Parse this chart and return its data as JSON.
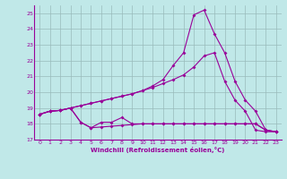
{
  "xlabel": "Windchill (Refroidissement éolien,°C)",
  "bg_color": "#c0e8e8",
  "line_color": "#990099",
  "grid_color": "#99bbbb",
  "xlim": [
    -0.5,
    23.5
  ],
  "ylim": [
    17,
    25.5
  ],
  "xticks": [
    0,
    1,
    2,
    3,
    4,
    5,
    6,
    7,
    8,
    9,
    10,
    11,
    12,
    13,
    14,
    15,
    16,
    17,
    18,
    19,
    20,
    21,
    22,
    23
  ],
  "yticks": [
    17,
    18,
    19,
    20,
    21,
    22,
    23,
    24,
    25
  ],
  "line1_x": [
    0,
    1,
    2,
    3,
    4,
    5,
    6,
    7,
    8,
    9,
    10,
    11,
    12,
    13,
    14,
    15,
    16,
    17,
    18,
    19,
    20,
    21,
    22,
    23
  ],
  "line1_y": [
    18.6,
    18.8,
    18.85,
    19.0,
    19.15,
    19.3,
    19.45,
    19.6,
    19.75,
    19.9,
    20.1,
    20.3,
    20.55,
    20.8,
    21.1,
    21.6,
    22.3,
    22.5,
    20.7,
    19.5,
    18.8,
    17.6,
    17.5,
    17.5
  ],
  "line2_x": [
    0,
    1,
    2,
    3,
    4,
    5,
    6,
    7,
    8,
    9,
    10,
    11,
    12,
    13,
    14,
    15,
    16,
    17,
    18,
    19,
    20,
    21,
    22,
    23
  ],
  "line2_y": [
    18.6,
    18.8,
    18.85,
    19.0,
    19.15,
    19.3,
    19.45,
    19.6,
    19.75,
    19.9,
    20.1,
    20.4,
    20.8,
    21.7,
    22.5,
    24.9,
    25.2,
    23.7,
    22.5,
    20.7,
    19.5,
    18.8,
    17.6,
    17.5
  ],
  "line3_x": [
    0,
    1,
    2,
    3,
    4,
    5,
    6,
    7,
    8,
    9,
    10,
    11,
    12,
    13,
    14,
    15,
    16,
    17,
    18,
    19,
    20,
    21,
    22,
    23
  ],
  "line3_y": [
    18.6,
    18.8,
    18.85,
    19.0,
    18.1,
    17.75,
    17.8,
    17.85,
    17.9,
    17.95,
    18.0,
    18.0,
    18.0,
    18.0,
    18.0,
    18.0,
    18.0,
    18.0,
    18.0,
    18.0,
    18.0,
    18.0,
    17.6,
    17.5
  ],
  "line4_x": [
    0,
    1,
    2,
    3,
    4,
    5,
    6,
    7,
    8,
    9,
    10,
    11,
    12,
    13,
    14,
    15,
    16,
    17,
    18,
    19,
    20,
    21,
    22,
    23
  ],
  "line4_y": [
    18.6,
    18.8,
    18.85,
    19.0,
    18.1,
    17.75,
    18.1,
    18.1,
    18.4,
    18.0,
    18.0,
    18.0,
    18.0,
    18.0,
    18.0,
    18.0,
    18.0,
    18.0,
    18.0,
    18.0,
    18.0,
    18.0,
    17.6,
    17.5
  ]
}
